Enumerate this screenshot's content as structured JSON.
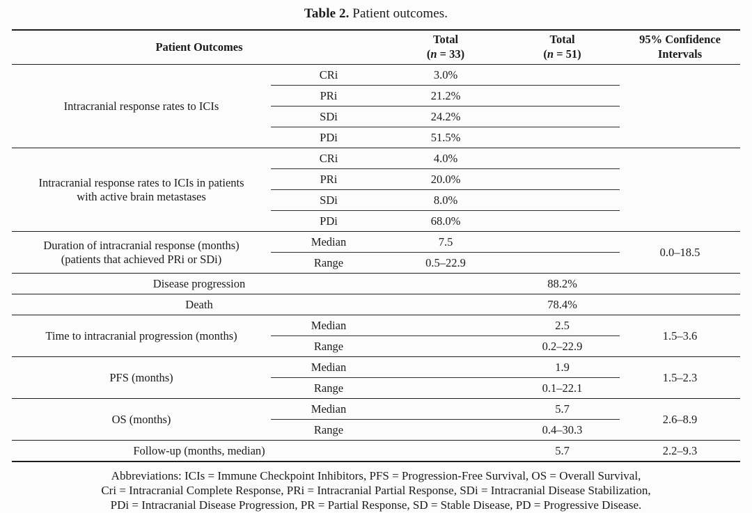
{
  "title": {
    "label": "Table 2.",
    "text": "Patient outcomes."
  },
  "header": {
    "patient_outcomes": "Patient Outcomes",
    "total": "Total",
    "n33_pre": "(",
    "n33_n": "n",
    "n33_post": " = 33)",
    "n51_pre": "(",
    "n51_n": "n",
    "n51_post": " = 51)",
    "ci_line1": "95% Confidence",
    "ci_line2": "Intervals"
  },
  "blocks": {
    "icis": {
      "label": "Intracranial response rates to ICIs",
      "rows": [
        {
          "sub": "CRi",
          "v": "3.0%"
        },
        {
          "sub": "PRi",
          "v": "21.2%"
        },
        {
          "sub": "SDi",
          "v": "24.2%"
        },
        {
          "sub": "PDi",
          "v": "51.5%"
        }
      ]
    },
    "icis_active": {
      "label_line1": "Intracranial response rates to ICIs in patients",
      "label_line2": "with active brain metastases",
      "rows": [
        {
          "sub": "CRi",
          "v": "4.0%"
        },
        {
          "sub": "PRi",
          "v": "20.0%"
        },
        {
          "sub": "SDi",
          "v": "8.0%"
        },
        {
          "sub": "PDi",
          "v": "68.0%"
        }
      ]
    },
    "duration": {
      "label_line1": "Duration of intracranial response (months)",
      "label_line2": "(patients that achieved PRi or SDi)",
      "median_label": "Median",
      "median": "7.5",
      "range_label": "Range",
      "range": "0.5–22.9",
      "ci": "0.0–18.5"
    },
    "disease_progression": {
      "label": "Disease progression",
      "v51": "88.2%"
    },
    "death": {
      "label": "Death",
      "v51": "78.4%"
    },
    "ttip": {
      "label": "Time to intracranial progression (months)",
      "median_label": "Median",
      "median": "2.5",
      "range_label": "Range",
      "range": "0.2–22.9",
      "ci": "1.5–3.6"
    },
    "pfs": {
      "label": "PFS (months)",
      "median_label": "Median",
      "median": "1.9",
      "range_label": "Range",
      "range": "0.1–22.1",
      "ci": "1.5–2.3"
    },
    "os": {
      "label": "OS (months)",
      "median_label": "Median",
      "median": "5.7",
      "range_label": "Range",
      "range": "0.4–30.3",
      "ci": "2.6–8.9"
    },
    "followup": {
      "label": "Follow-up (months, median)",
      "v51": "5.7",
      "ci": "2.2–9.3"
    }
  },
  "footnote": {
    "line1": "Abbreviations: ICIs = Immune Checkpoint Inhibitors, PFS = Progression-Free Survival, OS = Overall Survival,",
    "line2": "Cri = Intracranial Complete Response, PRi = Intracranial Partial Response, SDi = Intracranial Disease Stabilization,",
    "line3": "PDi = Intracranial Disease Progression, PR = Partial Response, SD = Stable Disease, PD = Progressive Disease."
  }
}
